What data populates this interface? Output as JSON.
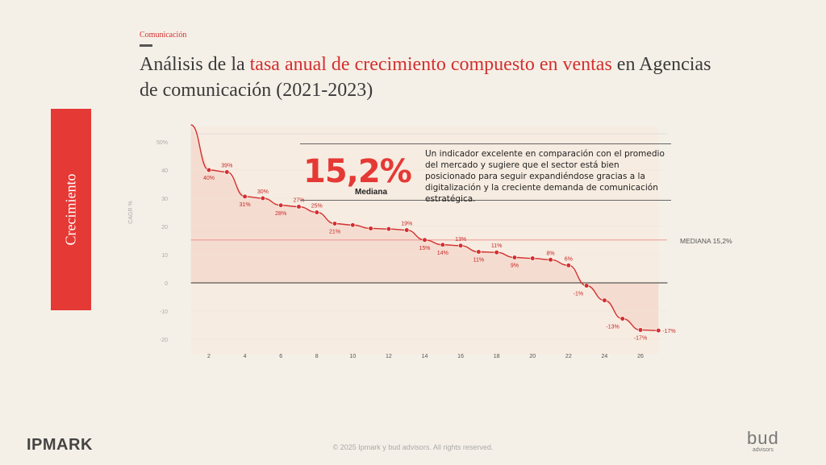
{
  "header": {
    "section": "Comunicación",
    "title_prefix": "Análisis de la ",
    "title_highlight": "tasa anual de crecimiento compuesto en ventas",
    "title_suffix": " en Agencias de comunicación (2021-2023)",
    "accent_color": "#d32f2f"
  },
  "side_tab": {
    "label": "Crecimiento",
    "color": "#e53935"
  },
  "kpi": {
    "value": "15,2%",
    "label": "Mediana"
  },
  "callout": {
    "text": "Un indicador excelente en comparación con el promedio del mercado y sugiere que el sector está bien posicionado para seguir expandiéndose gracias a la digitalización y la creciente demanda de comunicación estratégica."
  },
  "footer": {
    "left_logo": "IPMARK",
    "copyright": "© 2025 Ipmark y bud advisors. All rights reserved.",
    "right_logo": "bud",
    "right_logo_sub": "advisors"
  },
  "chart_data": {
    "type": "line",
    "xlabel": "",
    "ylabel": "CAGR %",
    "xlim": [
      0,
      27.5
    ],
    "ylim": [
      -22,
      55
    ],
    "x_ticks": [
      2,
      4,
      6,
      8,
      10,
      12,
      14,
      16,
      18,
      20,
      22,
      24,
      26
    ],
    "y_ticks": [
      -20,
      -10,
      0,
      10,
      20,
      30,
      40
    ],
    "y_tick_labels": [
      "-20",
      "-10",
      "0",
      "10",
      "20",
      "30",
      "40"
    ],
    "y_top_tick_label": "50%",
    "median": {
      "value": 15.2,
      "label": "MEDIANA 15,2%"
    },
    "line_color": "#d32f2f",
    "x": [
      1,
      2,
      3,
      4,
      5,
      6,
      7,
      8,
      9,
      10,
      11,
      12,
      13,
      14,
      15,
      16,
      17,
      18,
      19,
      20,
      21,
      22,
      23,
      24,
      25,
      26,
      27
    ],
    "values": [
      56,
      40,
      39.3,
      30.6,
      30,
      27.5,
      27,
      25,
      21,
      20.5,
      19.3,
      19.1,
      18.7,
      15.2,
      13.5,
      13.2,
      11,
      10.8,
      9,
      8.7,
      8.2,
      6.2,
      -1,
      -6.2,
      -12.7,
      -16.7,
      -16.9
    ],
    "point_labels": [
      {
        "x": 2,
        "text": "40%",
        "pos": "below"
      },
      {
        "x": 3,
        "text": "39%",
        "pos": "above"
      },
      {
        "x": 4,
        "text": "31%",
        "pos": "below"
      },
      {
        "x": 5,
        "text": "30%",
        "pos": "above"
      },
      {
        "x": 6,
        "text": "28%",
        "pos": "below"
      },
      {
        "x": 7,
        "text": "27%",
        "pos": "above"
      },
      {
        "x": 8,
        "text": "25%",
        "pos": "above"
      },
      {
        "x": 9,
        "text": "21%",
        "pos": "below"
      },
      {
        "x": 13,
        "text": "19%",
        "pos": "above"
      },
      {
        "x": 14,
        "text": "15%",
        "pos": "below"
      },
      {
        "x": 15,
        "text": "14%",
        "pos": "below"
      },
      {
        "x": 16,
        "text": "13%",
        "pos": "above"
      },
      {
        "x": 17,
        "text": "11%",
        "pos": "below"
      },
      {
        "x": 18,
        "text": "11%",
        "pos": "above"
      },
      {
        "x": 19,
        "text": "9%",
        "pos": "below"
      },
      {
        "x": 21,
        "text": "8%",
        "pos": "above"
      },
      {
        "x": 22,
        "text": "6%",
        "pos": "above"
      },
      {
        "x": 23,
        "text": "-1%",
        "pos": "left"
      },
      {
        "x": 25,
        "text": "-13%",
        "pos": "left"
      },
      {
        "x": 26,
        "text": "-17%",
        "pos": "below"
      },
      {
        "x": 27,
        "text": "-17%",
        "pos": "right"
      }
    ]
  }
}
